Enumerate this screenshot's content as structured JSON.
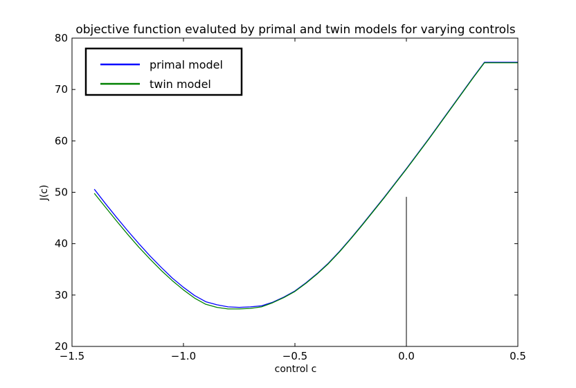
{
  "chart_data": {
    "type": "line",
    "title": "objective function evaluted by primal and twin models for varying controls",
    "xlabel": "control c",
    "ylabel": "J(c)",
    "xlim": [
      -1.5,
      0.5
    ],
    "ylim": [
      20,
      80
    ],
    "x_ticks": [
      -1.5,
      -1.0,
      -0.5,
      0.0,
      0.5
    ],
    "x_tick_labels": [
      "−1.5",
      "−1.0",
      "−0.5",
      "0.0",
      "0.5"
    ],
    "y_ticks": [
      20,
      30,
      40,
      50,
      60,
      70,
      80
    ],
    "y_tick_labels": [
      "20",
      "30",
      "40",
      "50",
      "60",
      "70",
      "80"
    ],
    "grid": false,
    "legend_position": "top-left",
    "vertical_line": {
      "x": 0.0,
      "y_from": 20,
      "y_to": 49.1,
      "color": "#000000"
    },
    "series": [
      {
        "name": "primal model",
        "color": "#0000ff",
        "x": [
          -1.4,
          -1.35,
          -1.3,
          -1.25,
          -1.2,
          -1.15,
          -1.1,
          -1.05,
          -1.0,
          -0.95,
          -0.9,
          -0.85,
          -0.8,
          -0.75,
          -0.7,
          -0.65,
          -0.6,
          -0.55,
          -0.5,
          -0.45,
          -0.4,
          -0.35,
          -0.3,
          -0.25,
          -0.2,
          -0.15,
          -0.1,
          -0.05,
          0.0,
          0.05,
          0.1,
          0.15,
          0.2,
          0.25,
          0.3,
          0.35,
          0.4,
          0.45,
          0.5
        ],
        "y": [
          50.6,
          47.8,
          45.1,
          42.5,
          40.0,
          37.6,
          35.4,
          33.3,
          31.5,
          29.9,
          28.7,
          28.1,
          27.7,
          27.6,
          27.7,
          27.9,
          28.6,
          29.6,
          30.8,
          32.4,
          34.2,
          36.2,
          38.5,
          41.0,
          43.6,
          46.3,
          49.0,
          51.8,
          54.6,
          57.5,
          60.4,
          63.4,
          66.4,
          69.4,
          72.4,
          75.3,
          75.3,
          75.3,
          75.3
        ]
      },
      {
        "name": "twin model",
        "color": "#008000",
        "x": [
          -1.4,
          -1.35,
          -1.3,
          -1.25,
          -1.2,
          -1.15,
          -1.1,
          -1.05,
          -1.0,
          -0.95,
          -0.9,
          -0.85,
          -0.8,
          -0.75,
          -0.7,
          -0.65,
          -0.6,
          -0.55,
          -0.5,
          -0.45,
          -0.4,
          -0.35,
          -0.3,
          -0.25,
          -0.2,
          -0.15,
          -0.1,
          -0.05,
          0.0,
          0.05,
          0.1,
          0.15,
          0.2,
          0.25,
          0.3,
          0.35,
          0.4,
          0.45,
          0.5
        ],
        "y": [
          49.8,
          47.1,
          44.4,
          41.8,
          39.3,
          37.0,
          34.8,
          32.8,
          31.0,
          29.4,
          28.2,
          27.6,
          27.3,
          27.3,
          27.4,
          27.7,
          28.5,
          29.5,
          30.7,
          32.3,
          34.1,
          36.1,
          38.4,
          40.9,
          43.5,
          46.2,
          48.9,
          51.7,
          54.5,
          57.4,
          60.3,
          63.3,
          66.3,
          69.3,
          72.3,
          75.2,
          75.2,
          75.2,
          75.2
        ]
      }
    ]
  }
}
